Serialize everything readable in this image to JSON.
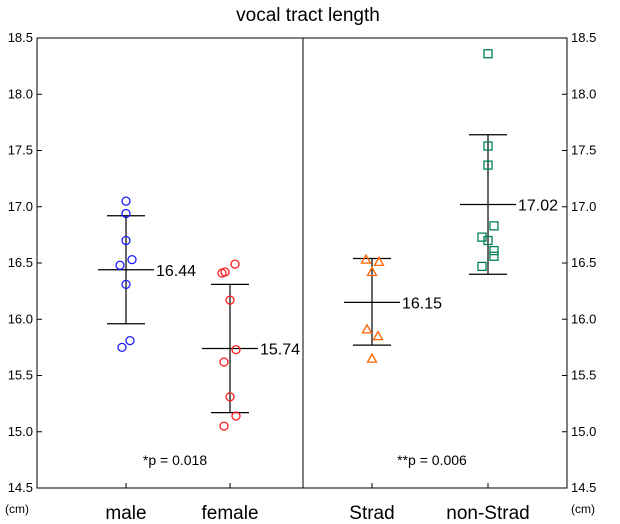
{
  "chart_data": {
    "type": "scatter",
    "title": "vocal tract length",
    "y_unit": "(cm)",
    "ylim": [
      14.5,
      18.5
    ],
    "yticks": [
      "14.5",
      "15.0",
      "15.5",
      "16.0",
      "16.5",
      "17.0",
      "17.5",
      "18.0",
      "18.5"
    ],
    "grid": false,
    "panels": [
      {
        "p_label": "*p = 0.018",
        "groups": [
          {
            "name": "male",
            "color": "#1a1aff",
            "marker": "circle",
            "mean": 16.44,
            "mean_label": "16.44",
            "sd_upper": 16.92,
            "sd_lower": 15.96,
            "values": [
              17.05,
              16.94,
              16.7,
              16.53,
              16.48,
              16.31,
              15.81,
              15.75
            ]
          },
          {
            "name": "female",
            "color": "#ff1a1a",
            "marker": "circle",
            "mean": 15.74,
            "mean_label": "15.74",
            "sd_upper": 16.31,
            "sd_lower": 15.17,
            "values": [
              16.49,
              16.42,
              16.41,
              16.17,
              15.73,
              15.62,
              15.31,
              15.14,
              15.05
            ]
          }
        ]
      },
      {
        "p_label": "**p = 0.006",
        "groups": [
          {
            "name": "Strad",
            "color": "#ff6600",
            "marker": "triangle",
            "mean": 16.15,
            "mean_label": "16.15",
            "sd_upper": 16.54,
            "sd_lower": 15.77,
            "values": [
              16.53,
              16.51,
              16.42,
              15.91,
              15.85,
              15.65
            ]
          },
          {
            "name": "non-Strad",
            "color": "#00805a",
            "marker": "square",
            "mean": 17.02,
            "mean_label": "17.02",
            "sd_upper": 17.64,
            "sd_lower": 16.4,
            "values": [
              18.36,
              17.54,
              17.37,
              16.83,
              16.73,
              16.7,
              16.61,
              16.56,
              16.47
            ]
          }
        ]
      }
    ]
  }
}
